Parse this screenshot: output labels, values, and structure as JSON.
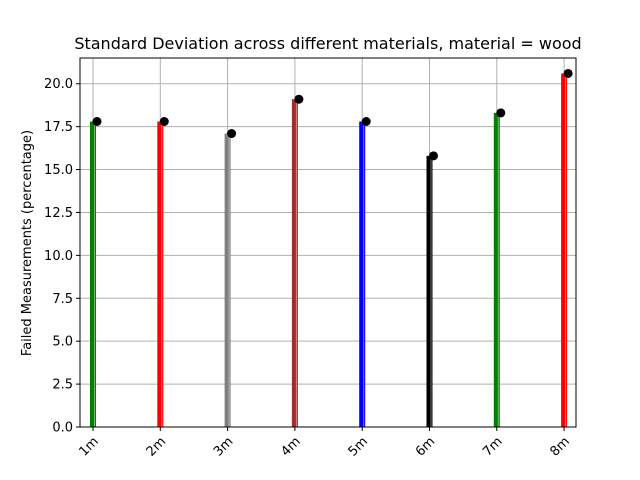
{
  "chart_data": {
    "type": "bar",
    "title": "Standard Deviation across different materials, material = wood",
    "xlabel": "",
    "ylabel": "Failed Measurements (percentage)",
    "categories": [
      "1m",
      "2m",
      "3m",
      "4m",
      "5m",
      "6m",
      "7m",
      "8m"
    ],
    "values": [
      17.8,
      17.8,
      17.1,
      19.1,
      17.8,
      15.8,
      18.3,
      20.6
    ],
    "bar_colors": [
      "#008000",
      "#ff0000",
      "#808080",
      "#a52a2a",
      "#0000ff",
      "#000000",
      "#008000",
      "#ff0000"
    ],
    "marker_color": "#000000",
    "ylim": [
      0,
      21.5
    ],
    "yticks": [
      "0.0",
      "2.5",
      "5.0",
      "7.5",
      "10.0",
      "12.5",
      "15.0",
      "17.5",
      "20.0"
    ],
    "grid": true
  }
}
